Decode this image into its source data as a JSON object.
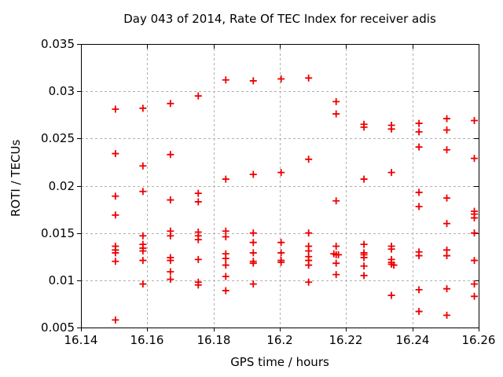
{
  "chart_data": {
    "type": "scatter",
    "title": "Day 043 of 2014, Rate Of TEC Index for receiver adis",
    "xlabel": "GPS time / hours",
    "ylabel": "ROTI / TECUs",
    "xlim": [
      16.14,
      16.26
    ],
    "ylim": [
      0.005,
      0.035
    ],
    "xtick_values": [
      16.14,
      16.16,
      16.18,
      16.2,
      16.22,
      16.24,
      16.26
    ],
    "xtick_labels": [
      "16.14",
      "16.16",
      "16.18",
      "16.2",
      "16.22",
      "16.24",
      "16.26"
    ],
    "ytick_values": [
      0.005,
      0.01,
      0.015,
      0.02,
      0.025,
      0.03,
      0.035
    ],
    "ytick_labels": [
      "0.005",
      "0.01",
      "0.015",
      "0.02",
      "0.025",
      "0.03",
      "0.035"
    ],
    "grid": true,
    "legend": "none",
    "marker": "plus",
    "marker_color": "#ee0000",
    "grid_color": "#b0b0b0",
    "axis_color": "#000000",
    "series": [
      {
        "name": "ROTI",
        "points": [
          [
            16.1504,
            0.0281
          ],
          [
            16.1504,
            0.0234
          ],
          [
            16.1504,
            0.0189
          ],
          [
            16.1504,
            0.0169
          ],
          [
            16.1504,
            0.0136
          ],
          [
            16.1504,
            0.0132
          ],
          [
            16.1504,
            0.0129
          ],
          [
            16.1504,
            0.012
          ],
          [
            16.1504,
            0.0058
          ],
          [
            16.1587,
            0.0282
          ],
          [
            16.1587,
            0.0221
          ],
          [
            16.1587,
            0.0194
          ],
          [
            16.1587,
            0.0147
          ],
          [
            16.1587,
            0.0138
          ],
          [
            16.1587,
            0.0134
          ],
          [
            16.1587,
            0.0131
          ],
          [
            16.1587,
            0.0121
          ],
          [
            16.1587,
            0.0096
          ],
          [
            16.167,
            0.0287
          ],
          [
            16.167,
            0.0233
          ],
          [
            16.167,
            0.0185
          ],
          [
            16.167,
            0.0152
          ],
          [
            16.167,
            0.0147
          ],
          [
            16.167,
            0.0124
          ],
          [
            16.167,
            0.0121
          ],
          [
            16.167,
            0.0109
          ],
          [
            16.167,
            0.0101
          ],
          [
            16.1754,
            0.0295
          ],
          [
            16.1754,
            0.0192
          ],
          [
            16.1754,
            0.0183
          ],
          [
            16.1754,
            0.0151
          ],
          [
            16.1754,
            0.0147
          ],
          [
            16.1754,
            0.0143
          ],
          [
            16.1754,
            0.0122
          ],
          [
            16.1754,
            0.0098
          ],
          [
            16.1754,
            0.0095
          ],
          [
            16.1837,
            0.0312
          ],
          [
            16.1837,
            0.0207
          ],
          [
            16.1837,
            0.0152
          ],
          [
            16.1837,
            0.0146
          ],
          [
            16.1837,
            0.0128
          ],
          [
            16.1837,
            0.0123
          ],
          [
            16.1837,
            0.0116
          ],
          [
            16.1837,
            0.0104
          ],
          [
            16.1837,
            0.0089
          ],
          [
            16.192,
            0.0311
          ],
          [
            16.192,
            0.0212
          ],
          [
            16.192,
            0.015
          ],
          [
            16.192,
            0.014
          ],
          [
            16.192,
            0.0129
          ],
          [
            16.192,
            0.012
          ],
          [
            16.192,
            0.0118
          ],
          [
            16.192,
            0.0096
          ],
          [
            16.2004,
            0.0313
          ],
          [
            16.2004,
            0.0214
          ],
          [
            16.2004,
            0.014
          ],
          [
            16.2004,
            0.0129
          ],
          [
            16.2004,
            0.0121
          ],
          [
            16.2004,
            0.0119
          ],
          [
            16.2087,
            0.0314
          ],
          [
            16.2087,
            0.0228
          ],
          [
            16.2087,
            0.015
          ],
          [
            16.2087,
            0.0136
          ],
          [
            16.2087,
            0.0131
          ],
          [
            16.2087,
            0.0125
          ],
          [
            16.2087,
            0.0121
          ],
          [
            16.2087,
            0.0116
          ],
          [
            16.2087,
            0.0098
          ],
          [
            16.217,
            0.0289
          ],
          [
            16.217,
            0.0276
          ],
          [
            16.217,
            0.0184
          ],
          [
            16.217,
            0.0136
          ],
          [
            16.2163,
            0.0128
          ],
          [
            16.217,
            0.0127
          ],
          [
            16.2177,
            0.0127
          ],
          [
            16.217,
            0.0118
          ],
          [
            16.217,
            0.0106
          ],
          [
            16.2254,
            0.0265
          ],
          [
            16.2254,
            0.0262
          ],
          [
            16.2254,
            0.0207
          ],
          [
            16.2254,
            0.0138
          ],
          [
            16.2254,
            0.0129
          ],
          [
            16.2254,
            0.0127
          ],
          [
            16.2254,
            0.0124
          ],
          [
            16.2254,
            0.0115
          ],
          [
            16.2254,
            0.0105
          ],
          [
            16.2337,
            0.0264
          ],
          [
            16.2337,
            0.026
          ],
          [
            16.2337,
            0.0214
          ],
          [
            16.2337,
            0.0136
          ],
          [
            16.2337,
            0.0133
          ],
          [
            16.2337,
            0.0122
          ],
          [
            16.2337,
            0.0119
          ],
          [
            16.2337,
            0.0117
          ],
          [
            16.2344,
            0.0116
          ],
          [
            16.2337,
            0.0084
          ],
          [
            16.242,
            0.0266
          ],
          [
            16.242,
            0.0257
          ],
          [
            16.242,
            0.0241
          ],
          [
            16.242,
            0.0193
          ],
          [
            16.242,
            0.0178
          ],
          [
            16.242,
            0.013
          ],
          [
            16.242,
            0.0126
          ],
          [
            16.242,
            0.009
          ],
          [
            16.242,
            0.0067
          ],
          [
            16.2504,
            0.0271
          ],
          [
            16.2504,
            0.0259
          ],
          [
            16.2504,
            0.0238
          ],
          [
            16.2504,
            0.0187
          ],
          [
            16.2504,
            0.016
          ],
          [
            16.2504,
            0.0132
          ],
          [
            16.2504,
            0.0126
          ],
          [
            16.2504,
            0.0091
          ],
          [
            16.2504,
            0.0063
          ],
          [
            16.2587,
            0.0269
          ],
          [
            16.2587,
            0.0229
          ],
          [
            16.2587,
            0.0173
          ],
          [
            16.2587,
            0.017
          ],
          [
            16.2587,
            0.0166
          ],
          [
            16.2587,
            0.015
          ],
          [
            16.2587,
            0.0121
          ],
          [
            16.2587,
            0.0096
          ],
          [
            16.2587,
            0.0083
          ]
        ]
      }
    ]
  }
}
